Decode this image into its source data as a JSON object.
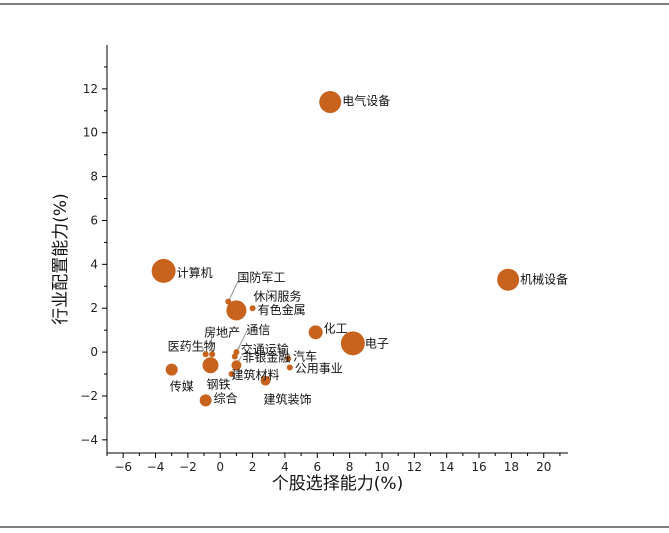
{
  "chart_data": {
    "type": "scatter",
    "title": "",
    "xlabel": "个股选择能力(%)",
    "ylabel": "行业配置能力(%)",
    "xlim": [
      -7,
      21.5
    ],
    "ylim": [
      -4.6,
      14
    ],
    "xticks": [
      -6,
      -4,
      -2,
      0,
      2,
      4,
      6,
      8,
      10,
      12,
      14,
      16,
      18,
      20
    ],
    "yticks": [
      -4,
      -2,
      0,
      2,
      4,
      6,
      8,
      10,
      12
    ],
    "tick_labels": {
      "x": [
        "−6",
        "−4",
        "−2",
        "0",
        "2",
        "4",
        "6",
        "8",
        "10",
        "12",
        "14",
        "16",
        "18",
        "20"
      ],
      "y": [
        "−4",
        "−2",
        "0",
        "2",
        "4",
        "6",
        "8",
        "10",
        "12"
      ]
    },
    "grid": false,
    "marker_color": "#c8631e",
    "points": [
      {
        "label": "电气设备",
        "x": 6.8,
        "y": 11.4,
        "size": 11
      },
      {
        "label": "计算机",
        "x": -3.5,
        "y": 3.7,
        "size": 12
      },
      {
        "label": "机械设备",
        "x": 17.8,
        "y": 3.3,
        "size": 11
      },
      {
        "label": "国防军工",
        "x": 0.5,
        "y": 2.3,
        "size": 3
      },
      {
        "label": "休闲服务",
        "x": 1.0,
        "y": 1.9,
        "size": 10
      },
      {
        "label": "有色金属",
        "x": 2.0,
        "y": 2.0,
        "size": 3
      },
      {
        "label": "化工",
        "x": 5.9,
        "y": 0.9,
        "size": 7
      },
      {
        "label": "电子",
        "x": 8.2,
        "y": 0.4,
        "size": 12
      },
      {
        "label": "房地产",
        "x": -0.5,
        "y": -0.1,
        "size": 3
      },
      {
        "label": "通信",
        "x": 1.0,
        "y": 0.0,
        "size": 3
      },
      {
        "label": "医药生物",
        "x": -0.9,
        "y": -0.1,
        "size": 3
      },
      {
        "label": "交通运输",
        "x": 0.9,
        "y": -0.2,
        "size": 3
      },
      {
        "label": "非银金融",
        "x": 1.0,
        "y": -0.6,
        "size": 5
      },
      {
        "label": "汽车",
        "x": 4.2,
        "y": -0.3,
        "size": 3
      },
      {
        "label": "公用事业",
        "x": 4.3,
        "y": -0.7,
        "size": 3
      },
      {
        "label": "传媒",
        "x": -3.0,
        "y": -0.8,
        "size": 6
      },
      {
        "label": "钢铁",
        "x": -0.6,
        "y": -0.6,
        "size": 8
      },
      {
        "label": "建筑材料",
        "x": 0.7,
        "y": -1.0,
        "size": 3
      },
      {
        "label": "建筑装饰",
        "x": 2.8,
        "y": -1.3,
        "size": 5
      },
      {
        "label": "综合",
        "x": -0.9,
        "y": -2.2,
        "size": 6
      }
    ]
  }
}
